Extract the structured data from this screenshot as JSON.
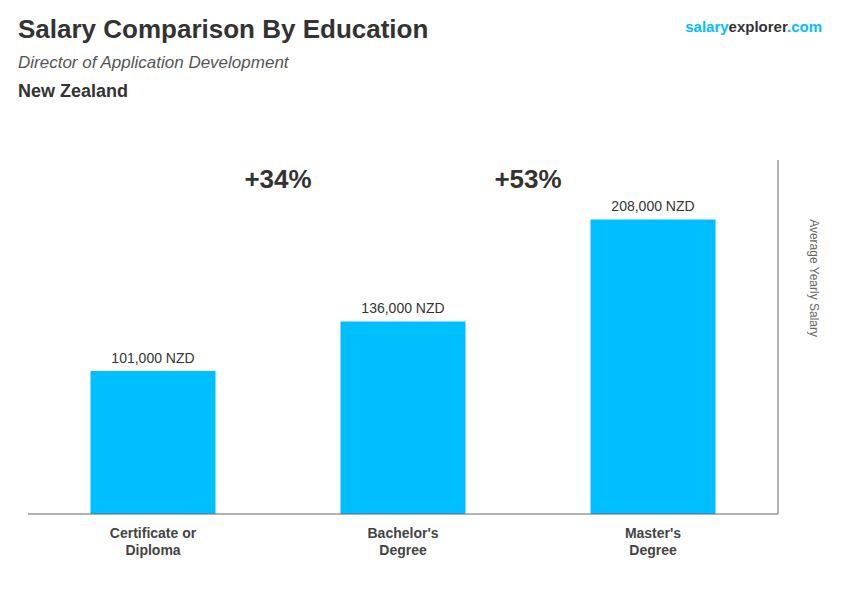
{
  "chart_data": {
    "type": "bar",
    "title": "Salary Comparison By Education",
    "subtitle": [
      "Director of Application Development",
      "New Zealand"
    ],
    "brand": [
      "salary",
      "explorer",
      ".com"
    ],
    "categories": [
      "Certificate or\nDiploma",
      "Bachelor's\nDegree",
      "Master's\nDegree"
    ],
    "values": [
      101000,
      136000,
      208000
    ],
    "value_labels": [
      "101,000 NZD",
      "136,000 NZD",
      "208,000 NZD"
    ],
    "data_labels": true,
    "annotations": [
      "+34%",
      "+53%"
    ],
    "ylabel": "Average Yearly Salary",
    "ylim": [
      0,
      250000
    ],
    "tick_labels": "x",
    "grid": false,
    "color": "#00BFFF"
  }
}
